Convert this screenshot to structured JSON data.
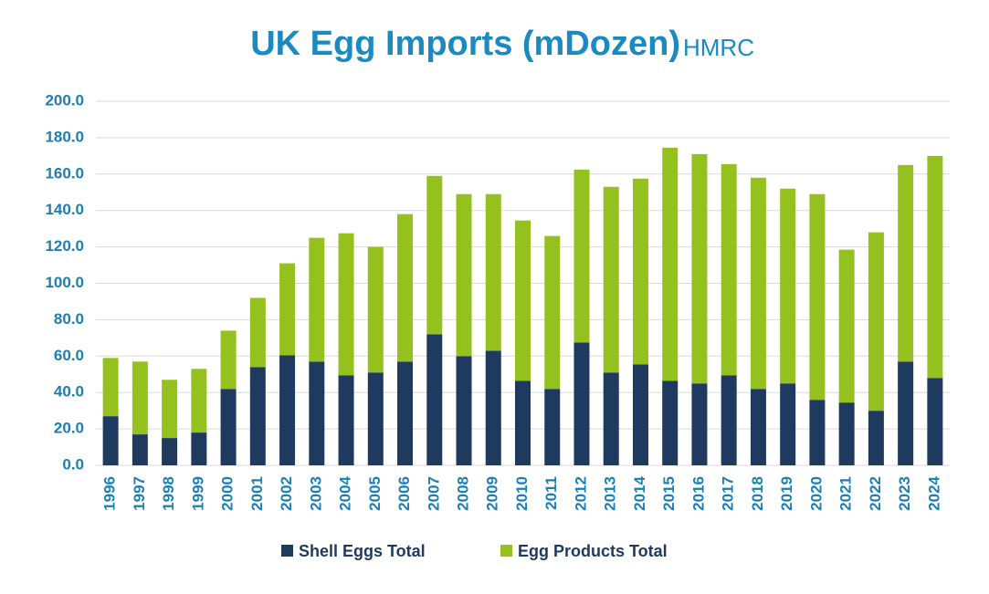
{
  "chart_data": {
    "type": "stacked_bar",
    "title": "UK Egg Imports (mDozen)",
    "subtitle": "HMRC",
    "categories": [
      "1996",
      "1997",
      "1998",
      "1999",
      "2000",
      "2001",
      "2002",
      "2003",
      "2004",
      "2005",
      "2006",
      "2007",
      "2008",
      "2009",
      "2010",
      "2011",
      "2012",
      "2013",
      "2014",
      "2015",
      "2016",
      "2017",
      "2018",
      "2019",
      "2020",
      "2021",
      "2022",
      "2023",
      "2024"
    ],
    "series": [
      {
        "name": "Shell Eggs Total",
        "color": "#1f3a5f",
        "values": [
          27,
          17,
          15,
          18,
          42,
          54,
          60.5,
          57,
          49.5,
          51,
          57,
          72,
          60,
          63,
          46.5,
          42,
          67.5,
          51,
          55.5,
          46.5,
          45,
          49.5,
          42,
          45,
          36,
          34.5,
          30,
          57,
          48
        ]
      },
      {
        "name": "Egg Products Total",
        "color": "#95c11f",
        "values": [
          32,
          40,
          32,
          35,
          32,
          38,
          50.5,
          68,
          78,
          69,
          81,
          87,
          89,
          86,
          88,
          84,
          95,
          102,
          102,
          128,
          126,
          116,
          116,
          107,
          113,
          84,
          98,
          108,
          122
        ]
      }
    ],
    "ylim": [
      0,
      200
    ],
    "yticks": [
      {
        "value": 0,
        "label": "0.0"
      },
      {
        "value": 20,
        "label": "20.0"
      },
      {
        "value": 40,
        "label": "40.0"
      },
      {
        "value": 60,
        "label": "60.0"
      },
      {
        "value": 80,
        "label": "80.0"
      },
      {
        "value": 100,
        "label": "100.0"
      },
      {
        "value": 120,
        "label": "120.0"
      },
      {
        "value": 140,
        "label": "140.0"
      },
      {
        "value": 160,
        "label": "160.0"
      },
      {
        "value": 180,
        "label": "180.0"
      },
      {
        "value": 200,
        "label": "200.0"
      }
    ],
    "grid": true
  }
}
